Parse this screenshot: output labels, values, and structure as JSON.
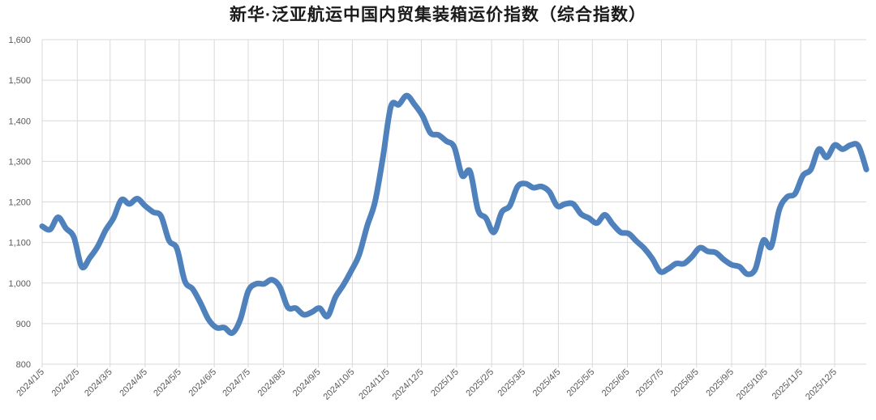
{
  "chart_data": {
    "type": "line",
    "title": "新华·泛亚航运中国内贸集装箱运价指数（综合指数）",
    "xlabel": "",
    "ylabel": "",
    "ylim": [
      800,
      1600
    ],
    "y_ticks": [
      "800",
      "900",
      "1,000",
      "1,100",
      "1,200",
      "1,300",
      "1,400",
      "1,500",
      "1,600"
    ],
    "y_tick_values": [
      800,
      900,
      1000,
      1100,
      1200,
      1300,
      1400,
      1500,
      1600
    ],
    "x_ticks": [
      "2024/1/5",
      "2024/2/5",
      "2024/3/5",
      "2024/4/5",
      "2024/5/5",
      "2024/6/5",
      "2024/7/5",
      "2024/8/5",
      "2024/9/5",
      "2024/10/5",
      "2024/11/5",
      "2024/12/5",
      "2025/1/5",
      "2025/2/5",
      "2025/3/5",
      "2025/4/5",
      "2025/5/5",
      "2025/6/5",
      "2025/7/5",
      "2025/8/5",
      "2025/9/5",
      "2025/10/5",
      "2025/11/5",
      "2025/12/5"
    ],
    "grid": true,
    "legend": "none",
    "line_color": "#4f81bd",
    "x": [
      "2024-01-05",
      "2024-01-12",
      "2024-01-19",
      "2024-01-26",
      "2024-02-02",
      "2024-02-09",
      "2024-02-16",
      "2024-02-23",
      "2024-03-01",
      "2024-03-08",
      "2024-03-15",
      "2024-03-22",
      "2024-03-29",
      "2024-04-05",
      "2024-04-12",
      "2024-04-19",
      "2024-04-26",
      "2024-05-03",
      "2024-05-10",
      "2024-05-17",
      "2024-05-24",
      "2024-05-31",
      "2024-06-07",
      "2024-06-14",
      "2024-06-21",
      "2024-06-28",
      "2024-07-05",
      "2024-07-12",
      "2024-07-19",
      "2024-07-26",
      "2024-08-02",
      "2024-08-09",
      "2024-08-16",
      "2024-08-23",
      "2024-08-30",
      "2024-09-06",
      "2024-09-13",
      "2024-09-20",
      "2024-09-27",
      "2024-10-04",
      "2024-10-11",
      "2024-10-18",
      "2024-10-25",
      "2024-11-01",
      "2024-11-08",
      "2024-11-15",
      "2024-11-22",
      "2024-11-29",
      "2024-12-06",
      "2024-12-13",
      "2024-12-20",
      "2024-12-27",
      "2025-01-03",
      "2025-01-10",
      "2025-01-17",
      "2025-01-24",
      "2025-01-31",
      "2025-02-07",
      "2025-02-14",
      "2025-02-21",
      "2025-02-28",
      "2025-03-07",
      "2025-03-14",
      "2025-03-21",
      "2025-03-28",
      "2025-04-04",
      "2025-04-11",
      "2025-04-18",
      "2025-04-25",
      "2025-05-02",
      "2025-05-09",
      "2025-05-16",
      "2025-05-23",
      "2025-05-30",
      "2025-06-06",
      "2025-06-13",
      "2025-06-20",
      "2025-06-27",
      "2025-07-04",
      "2025-07-11",
      "2025-07-18",
      "2025-07-25",
      "2025-08-01",
      "2025-08-08",
      "2025-08-15",
      "2025-08-22",
      "2025-08-29",
      "2025-09-05",
      "2025-09-12",
      "2025-09-19",
      "2025-09-26",
      "2025-10-03",
      "2025-10-10",
      "2025-10-17",
      "2025-10-24",
      "2025-10-31",
      "2025-11-07",
      "2025-11-14",
      "2025-11-21",
      "2025-11-28",
      "2025-12-05",
      "2025-12-12",
      "2025-12-19",
      "2025-12-26",
      "2026-01-02"
    ],
    "values": [
      1140,
      1132,
      1162,
      1135,
      1113,
      1040,
      1062,
      1090,
      1130,
      1160,
      1205,
      1195,
      1208,
      1190,
      1175,
      1165,
      1105,
      1085,
      1005,
      985,
      950,
      910,
      890,
      890,
      877,
      910,
      980,
      998,
      998,
      1008,
      990,
      940,
      938,
      922,
      928,
      938,
      918,
      965,
      995,
      1030,
      1070,
      1140,
      1200,
      1310,
      1435,
      1440,
      1462,
      1440,
      1412,
      1370,
      1365,
      1350,
      1335,
      1265,
      1275,
      1180,
      1160,
      1125,
      1175,
      1190,
      1238,
      1245,
      1235,
      1238,
      1225,
      1190,
      1195,
      1195,
      1170,
      1160,
      1148,
      1168,
      1145,
      1125,
      1122,
      1103,
      1085,
      1060,
      1028,
      1035,
      1048,
      1048,
      1065,
      1087,
      1078,
      1075,
      1058,
      1045,
      1040,
      1022,
      1035,
      1105,
      1090,
      1180,
      1212,
      1220,
      1265,
      1280,
      1330,
      1310,
      1340,
      1330,
      1340,
      1338,
      1280
    ]
  }
}
